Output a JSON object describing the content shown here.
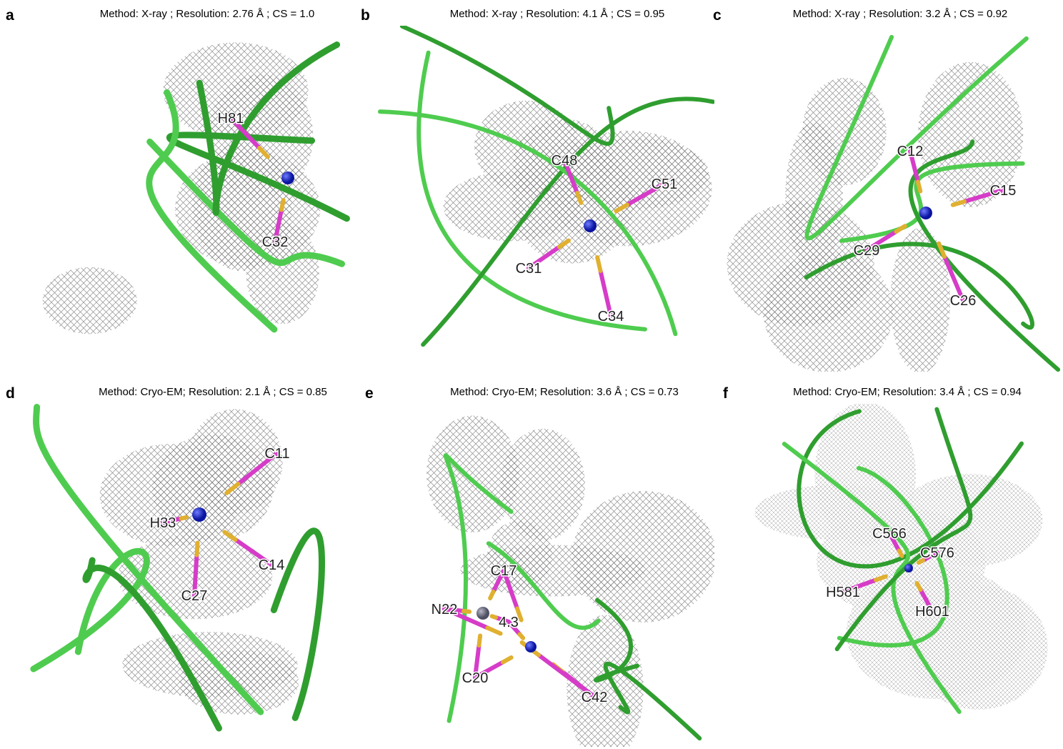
{
  "panels": [
    {
      "letter": "a",
      "caption": "Method: X-ray ; Resolution: 2.76 Å ;  CS = 1.0",
      "labels": [
        "H81",
        "C32"
      ]
    },
    {
      "letter": "b",
      "caption": "Method: X-ray ;  Resolution: 4.1 Å ; CS = 0.95",
      "labels": [
        "C48",
        "C51",
        "C31",
        "C34"
      ]
    },
    {
      "letter": "c",
      "caption": "Method: X-ray  ; Resolution: 3.2 Å ;  CS = 0.92",
      "labels": [
        "C12",
        "C15",
        "C29",
        "C26"
      ]
    },
    {
      "letter": "d",
      "caption": "Method: Cryo-EM; Resolution: 2.1 Å ;  CS = 0.85",
      "labels": [
        "C11",
        "H33",
        "C14",
        "C27"
      ]
    },
    {
      "letter": "e",
      "caption": "Method: Cryo-EM; Resolution: 3.6 Å ;  CS = 0.73",
      "labels": [
        "C17",
        "N22",
        "4.3",
        "C20",
        "C42"
      ]
    },
    {
      "letter": "f",
      "caption": "Method: Cryo-EM; Resolution: 3.4 Å ;  CS = 0.94",
      "labels": [
        "C566",
        "C576",
        "H581",
        "H601"
      ]
    }
  ]
}
